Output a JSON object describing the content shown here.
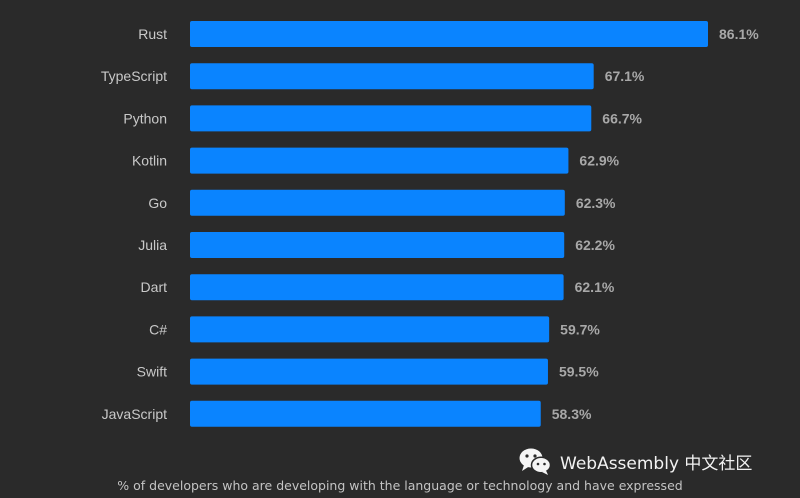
{
  "chart_data": {
    "type": "bar",
    "orientation": "horizontal",
    "categories": [
      "Rust",
      "TypeScript",
      "Python",
      "Kotlin",
      "Go",
      "Julia",
      "Dart",
      "C#",
      "Swift",
      "JavaScript"
    ],
    "values": [
      86.1,
      67.1,
      66.7,
      62.9,
      62.3,
      62.2,
      62.1,
      59.7,
      59.5,
      58.3
    ],
    "value_labels": [
      "86.1%",
      "67.1%",
      "66.7%",
      "62.9%",
      "62.3%",
      "62.2%",
      "62.1%",
      "59.7%",
      "59.5%",
      "58.3%"
    ],
    "title": "",
    "xlabel": "% of developers who are developing with the language or technology and have expressed",
    "ylabel": "",
    "xlim": [
      0,
      86.1
    ],
    "grid": false,
    "bar_color": "#0a84ff",
    "background_color": "#2a2a2a"
  },
  "watermark": {
    "text": "WebAssembly 中文社区",
    "icon": "wechat-icon"
  }
}
